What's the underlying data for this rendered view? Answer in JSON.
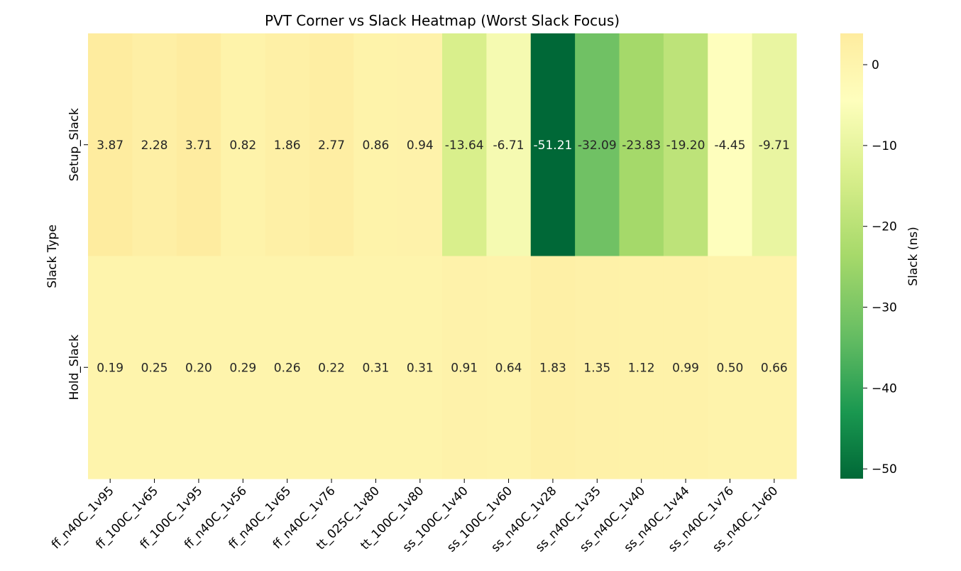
{
  "chart_data": {
    "type": "heatmap",
    "title": "PVT Corner vs Slack Heatmap (Worst Slack Focus)",
    "xlabel": "",
    "ylabel": "Slack Type",
    "x_categories": [
      "ff_n40C_1v95",
      "ff_100C_1v65",
      "ff_100C_1v95",
      "ff_n40C_1v56",
      "ff_n40C_1v65",
      "ff_n40C_1v76",
      "tt_025C_1v80",
      "tt_100C_1v80",
      "ss_100C_1v40",
      "ss_100C_1v60",
      "ss_n40C_1v28",
      "ss_n40C_1v35",
      "ss_n40C_1v40",
      "ss_n40C_1v44",
      "ss_n40C_1v76",
      "ss_n40C_1v60"
    ],
    "y_categories": [
      "Setup_Slack",
      "Hold_Slack"
    ],
    "values": [
      [
        3.87,
        2.28,
        3.71,
        0.82,
        1.86,
        2.77,
        0.86,
        0.94,
        -13.64,
        -6.71,
        -51.21,
        -32.09,
        -23.83,
        -19.2,
        -4.45,
        -9.71
      ],
      [
        0.19,
        0.25,
        0.2,
        0.29,
        0.26,
        0.22,
        0.31,
        0.31,
        0.91,
        0.64,
        1.83,
        1.35,
        1.12,
        0.99,
        0.5,
        0.66
      ]
    ],
    "colormap": "RdYlGn (yellow to green)",
    "colorbar": {
      "label": "Slack (ns)",
      "range": [
        -51.21,
        3.87
      ],
      "ticks": [
        0,
        -10,
        -20,
        -30,
        -40,
        -50
      ],
      "tick_labels": [
        "0",
        "−10",
        "−20",
        "−30",
        "−40",
        "−50"
      ]
    },
    "grid": false,
    "legend": "colorbar-right"
  }
}
